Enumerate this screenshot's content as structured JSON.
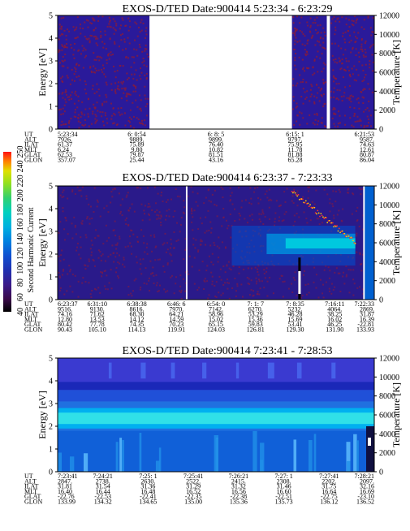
{
  "chart_data": [
    {
      "type": "heatmap",
      "title": "EXOS-D/TED   Date:900414  5:23:34 - 6:23:29",
      "ylabel": "Energy [eV]",
      "ylabel_right": "Temperature [K]",
      "ylim": [
        0,
        5
      ],
      "yticks": [
        "0",
        "1",
        "2",
        "3",
        "4",
        "5"
      ],
      "ylim_right": [
        0,
        12000
      ],
      "yticks_right": [
        "0",
        "2000",
        "4000",
        "6000",
        "8000",
        "10000",
        "12000"
      ],
      "data_segments": [
        [
          0,
          0.29
        ],
        [
          0.74,
          0.85
        ],
        [
          0.86,
          1.0
        ]
      ],
      "background_color": "#2a1a9a",
      "speckle_color": "#8a1a3a",
      "table": {
        "labels": [
          "UT",
          "ALT",
          "ILAT",
          "MLT",
          "GLAT",
          "GLON"
        ],
        "columns": [
          [
            "5:23:34",
            "7926.",
            "61.37",
            "6.24",
            "62.53",
            "357.07"
          ],
          [
            "6: 0:54",
            "9889.",
            "75.89",
            "9.80",
            "79.87",
            "25.44"
          ],
          [
            "6: 8: 5",
            "9899.",
            "76.40",
            "10.82",
            "81.51",
            "43.16"
          ],
          [
            "6:15: 1",
            "9797.",
            "75.95",
            "11.78",
            "81.88",
            "65.28"
          ],
          [
            "6:21:53",
            "9587.",
            "74.63",
            "12.61",
            "80.87",
            "86.04"
          ]
        ]
      }
    },
    {
      "type": "heatmap",
      "title": "EXOS-D/TED   Date:900414  6:23:37 - 7:23:33",
      "ylabel": "Energy [eV]",
      "ylabel_right": "Temperature [K]",
      "ylim": [
        0,
        5
      ],
      "yticks": [
        "0",
        "1",
        "2",
        "3",
        "4",
        "5"
      ],
      "ylim_right": [
        0,
        12000
      ],
      "yticks_right": [
        "0",
        "2000",
        "4000",
        "6000",
        "8000",
        "10000",
        "12000"
      ],
      "data_gaps": [
        [
          0.405,
          0.41
        ],
        [
          0.965,
          0.97
        ]
      ],
      "temperature_trace": "rises near 7:10 reaching about 12000 K",
      "table": {
        "labels": [
          "UT",
          "ALT",
          "ILAT",
          "MLT",
          "GLAT",
          "GLON"
        ],
        "columns": [
          [
            "6:23:37",
            "9516.",
            "74.16",
            "12.80",
            "80.42",
            "90.43"
          ],
          [
            "6:31:10",
            "9130.",
            "71.62",
            "13.53",
            "77.78",
            "105.10"
          ],
          [
            "6:38:38",
            "8616.",
            "68.30",
            "14.12",
            "74.35",
            "114.13"
          ],
          [
            "6:46: 6",
            "7970.",
            "64.21",
            "14.59",
            "70.23",
            "119.91"
          ],
          [
            "6:54: 0",
            "7142.",
            "58.96",
            "15.02",
            "65.15",
            "124.03"
          ],
          [
            "7: 1: 7",
            "6270.",
            "53.29",
            "15.36",
            "59.83",
            "126.81"
          ],
          [
            "7: 8:35",
            "5232.",
            "46.28",
            "15.69",
            "53.41",
            "129.30"
          ],
          [
            "7:16:11",
            "4064.",
            "38.25",
            "16.02",
            "46.25",
            "131.90"
          ],
          [
            "7:22:33",
            "2869.",
            "31.87",
            "16.39",
            "-22.81",
            "133.93"
          ]
        ]
      }
    },
    {
      "type": "heatmap",
      "title": "EXOS-D/TED   Date:900414  7:23:41 - 7:28:53",
      "ylabel": "Energy [eV]",
      "ylabel_right": "Temperature [K]",
      "ylim": [
        0,
        5
      ],
      "yticks": [
        "0",
        "1",
        "2",
        "3",
        "4",
        "5"
      ],
      "ylim_right": [
        0,
        12000
      ],
      "yticks_right": [
        "0",
        "2000",
        "4000",
        "6000",
        "8000",
        "10000",
        "12000"
      ],
      "table": {
        "labels": [
          "UT",
          "ALT",
          "ILAT",
          "MLT",
          "GLAT",
          "GLON"
        ],
        "columns": [
          [
            "7:23:41",
            "2847.",
            "31.81",
            "16.40",
            "-22.76",
            "133.99"
          ],
          [
            "7:24:21",
            "2738.",
            "31.54",
            "16.44",
            "-22.53",
            "134.32"
          ],
          [
            "7:25: 1",
            "2630.",
            "31.36",
            "16.48",
            "-22.41",
            "134.65"
          ],
          [
            "7:25:41",
            "2522.",
            "31.29",
            "16.52",
            "-22.35",
            "135.00"
          ],
          [
            "7:26:21",
            "2415.",
            "31.32",
            "16.56",
            "-22.38",
            "135.36"
          ],
          [
            "7:27: 1",
            "2308.",
            "31.46",
            "16.60",
            "-22.51",
            "135.73"
          ],
          [
            "7:27:41",
            "2202.",
            "31.75",
            "16.64",
            "-22.75",
            "136.12"
          ],
          [
            "7:28:21",
            "2097.",
            "32.16",
            "16.69",
            "-23.10",
            "136.52"
          ]
        ]
      }
    }
  ],
  "colorbar": {
    "label": "Second Harmonic Current",
    "ticks": [
      "40",
      "60",
      "80",
      "100",
      "120",
      "140",
      "160",
      "180",
      "200",
      "220",
      "240",
      "250"
    ],
    "colors": [
      "#000000",
      "#3a0a4a",
      "#3a1a8a",
      "#2030b0",
      "#1050d0",
      "#0080e0",
      "#00b0e0",
      "#00d0c0",
      "#30d070",
      "#90e020",
      "#e0e000",
      "#ff8000",
      "#ff1010"
    ]
  }
}
